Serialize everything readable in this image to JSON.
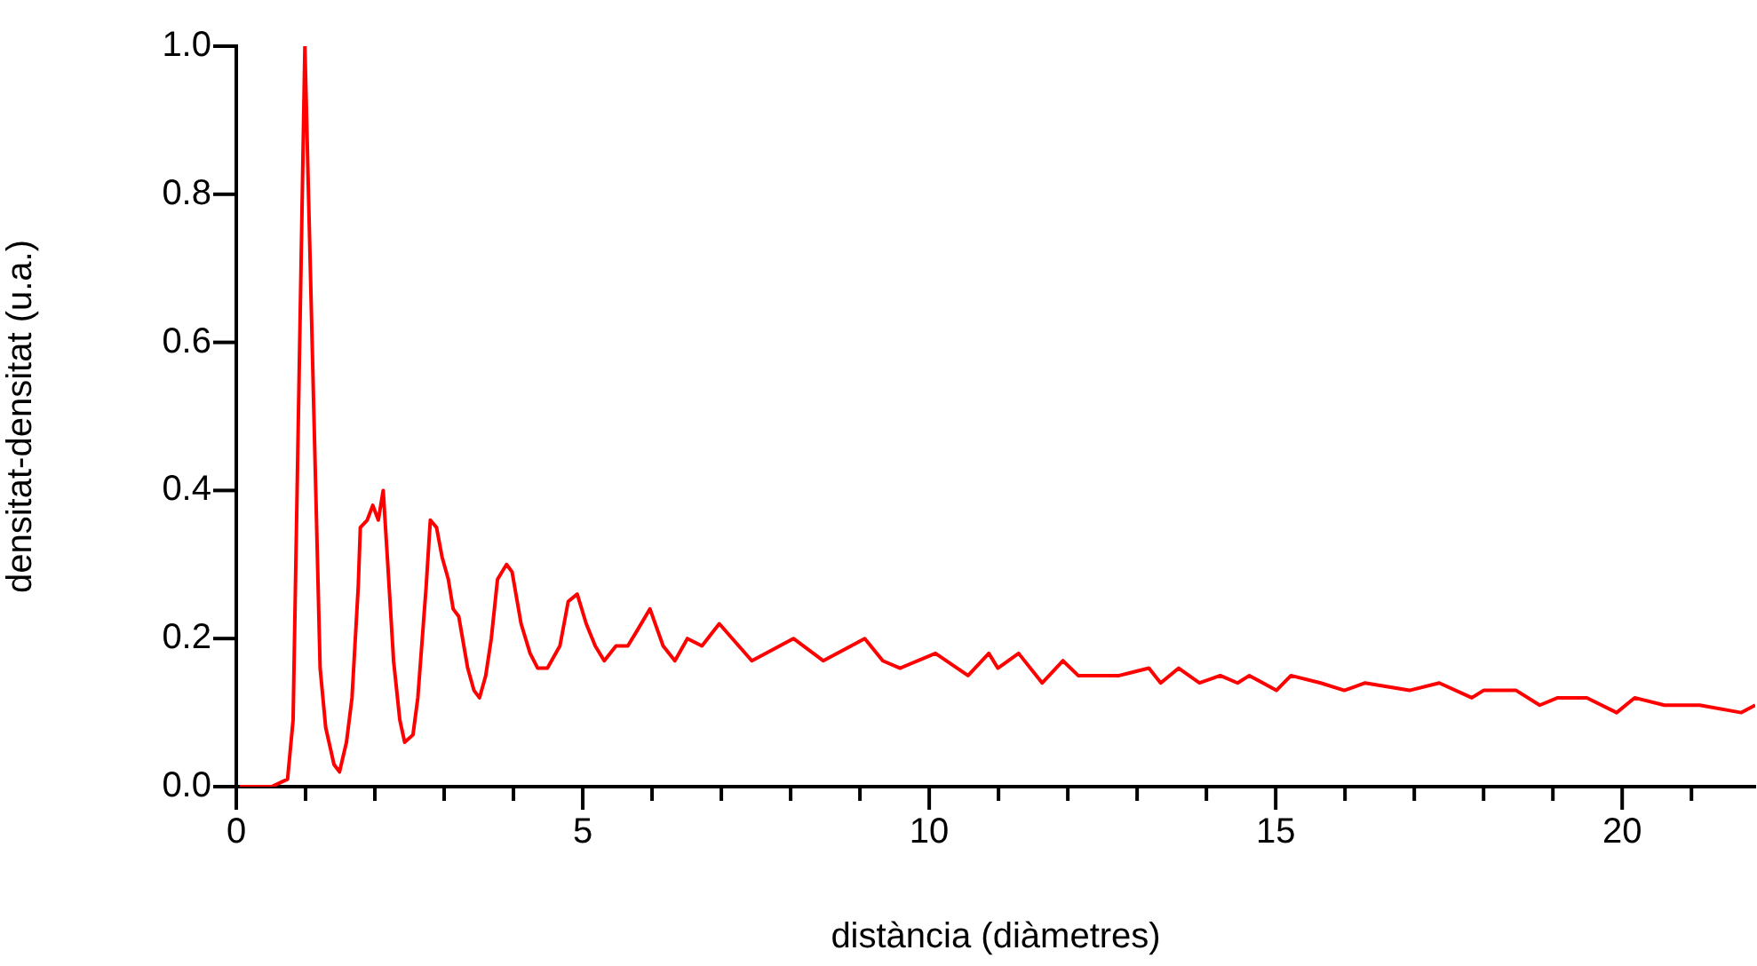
{
  "chart_data": {
    "type": "line",
    "xlabel": "distància (diàmetres)",
    "ylabel": "densitat-densitat (u.a.)",
    "xlim": [
      0,
      21.92
    ],
    "ylim": [
      0,
      1
    ],
    "xticks": [
      0,
      {
        "value": 1,
        "label": null
      },
      {
        "value": 2,
        "label": null
      },
      {
        "value": 3,
        "label": null
      },
      {
        "value": 4,
        "label": null
      },
      5,
      {
        "value": 6,
        "label": null
      },
      {
        "value": 7,
        "label": null
      },
      {
        "value": 8,
        "label": null
      },
      {
        "value": 9,
        "label": null
      },
      10,
      {
        "value": 11,
        "label": null
      },
      {
        "value": 12,
        "label": null
      },
      {
        "value": 13,
        "label": null
      },
      {
        "value": 14,
        "label": null
      },
      15,
      {
        "value": 16,
        "label": null
      },
      {
        "value": 17,
        "label": null
      },
      {
        "value": 18,
        "label": null
      },
      {
        "value": 19,
        "label": null
      },
      20,
      {
        "value": 21,
        "label": null
      }
    ],
    "yticks": [
      {
        "value": 0,
        "label": "0.0"
      },
      {
        "value": 0.2,
        "label": "0.2"
      },
      {
        "value": 0.4,
        "label": "0.4"
      },
      {
        "value": 0.6,
        "label": "0.6"
      },
      {
        "value": 0.8,
        "label": "0.8"
      },
      {
        "value": 1,
        "label": "1.0"
      }
    ],
    "grid": false,
    "legend": false,
    "marker": "none",
    "line_style": "solid",
    "series": [
      {
        "color": "#ff0000",
        "x": [
          0.05,
          0.51,
          0.74,
          0.82,
          0.99,
          1.21,
          1.29,
          1.41,
          1.49,
          1.59,
          1.67,
          1.76,
          1.79,
          1.89,
          1.97,
          2.05,
          2.12,
          2.18,
          2.27,
          2.36,
          2.43,
          2.55,
          2.62,
          2.74,
          2.8,
          2.89,
          2.97,
          3.06,
          3.13,
          3.21,
          3.34,
          3.43,
          3.51,
          3.6,
          3.68,
          3.77,
          3.9,
          3.98,
          4.11,
          4.24,
          4.35,
          4.49,
          4.67,
          4.79,
          4.92,
          5.05,
          5.18,
          5.31,
          5.48,
          5.65,
          5.78,
          5.97,
          6.16,
          6.33,
          6.51,
          6.72,
          6.97,
          7.44,
          8.04,
          8.47,
          9.07,
          9.33,
          9.58,
          10.09,
          10.56,
          10.86,
          10.99,
          11.29,
          11.63,
          11.93,
          12.15,
          12.74,
          13.17,
          13.34,
          13.6,
          13.9,
          14.2,
          14.45,
          14.62,
          15.01,
          15.22,
          15.65,
          15.99,
          16.29,
          16.93,
          17.36,
          17.83,
          18.0,
          18.47,
          18.81,
          19.07,
          19.49,
          19.92,
          20.18,
          20.61,
          21.12,
          21.72,
          21.92
        ],
        "values": [
          0,
          0,
          0.01,
          0.09,
          1.0,
          0.16,
          0.08,
          0.03,
          0.02,
          0.06,
          0.12,
          0.27,
          0.35,
          0.36,
          0.38,
          0.36,
          0.4,
          0.31,
          0.17,
          0.09,
          0.06,
          0.07,
          0.12,
          0.27,
          0.36,
          0.35,
          0.31,
          0.28,
          0.24,
          0.23,
          0.16,
          0.13,
          0.12,
          0.15,
          0.2,
          0.28,
          0.3,
          0.29,
          0.22,
          0.18,
          0.16,
          0.16,
          0.19,
          0.25,
          0.26,
          0.22,
          0.19,
          0.17,
          0.19,
          0.19,
          0.21,
          0.24,
          0.19,
          0.17,
          0.2,
          0.19,
          0.22,
          0.17,
          0.2,
          0.17,
          0.2,
          0.17,
          0.16,
          0.18,
          0.15,
          0.18,
          0.16,
          0.18,
          0.14,
          0.17,
          0.15,
          0.15,
          0.16,
          0.14,
          0.16,
          0.14,
          0.15,
          0.14,
          0.15,
          0.13,
          0.15,
          0.14,
          0.13,
          0.14,
          0.13,
          0.14,
          0.12,
          0.13,
          0.13,
          0.11,
          0.12,
          0.12,
          0.1,
          0.12,
          0.11,
          0.11,
          0.1,
          0.11
        ]
      }
    ]
  }
}
